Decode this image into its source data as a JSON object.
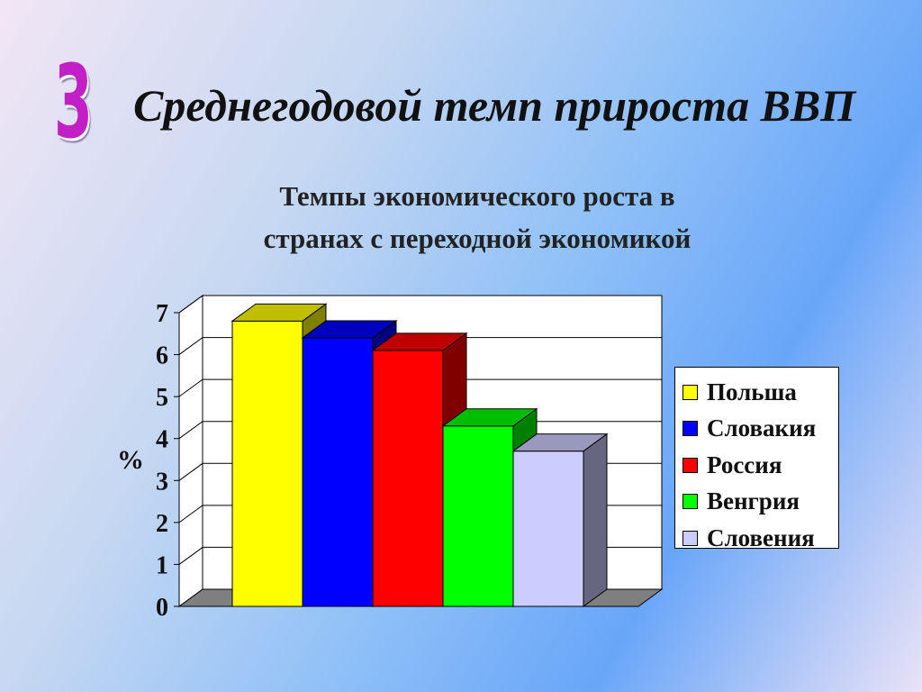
{
  "slide": {
    "number": "3",
    "title": "Среднегодовой темп прироста ВВП",
    "subtitle_lines": [
      "Темпы экономического роста в",
      "странах с переходной экономикой"
    ]
  },
  "chart_data": {
    "type": "bar",
    "title": "Темпы экономического роста в странах с переходной экономикой",
    "ylabel": "%",
    "xlabel": "",
    "ylim": [
      0,
      7
    ],
    "yticks": [
      "0",
      "1",
      "2",
      "3",
      "4",
      "5",
      "6",
      "7"
    ],
    "grid": true,
    "legend_position": "right",
    "series": [
      {
        "name": "Польша",
        "value": 6.8,
        "color": "#ffff00"
      },
      {
        "name": "Словакия",
        "value": 6.4,
        "color": "#0000ff"
      },
      {
        "name": "Россия",
        "value": 6.1,
        "color": "#ff0000"
      },
      {
        "name": "Венгрия",
        "value": 4.3,
        "color": "#00ff00"
      },
      {
        "name": "Словения",
        "value": 3.7,
        "color": "#ccccff"
      }
    ]
  }
}
